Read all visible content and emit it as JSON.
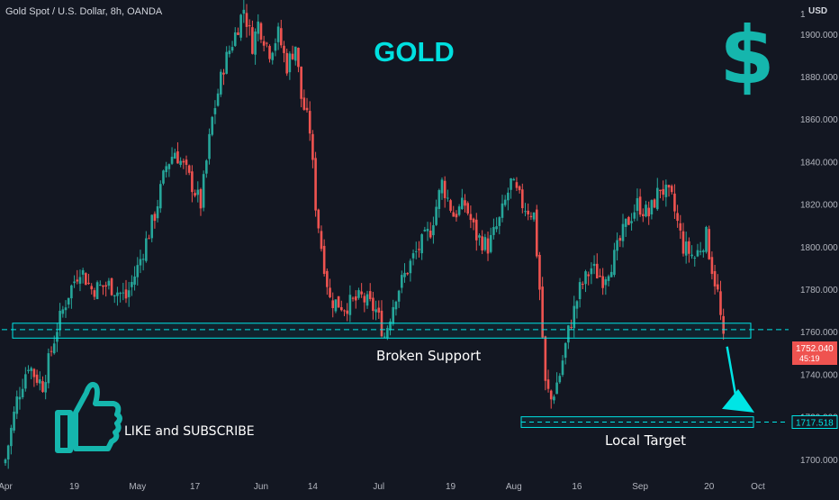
{
  "header": {
    "symbol_title": "Gold Spot / U.S. Dollar, 8h, OANDA",
    "currency": "USD"
  },
  "overlay": {
    "title": "GOLD",
    "dollar_symbol": "$",
    "cta_text": "LIKE and SUBSCRIBE",
    "thumbs_icon": "thumbs-up-icon"
  },
  "colors": {
    "background": "#131722",
    "up_candle": "#26a69a",
    "down_candle": "#ef5350",
    "accent_cyan": "#00e5e5",
    "axis_text": "#b2b5be"
  },
  "chart_data": {
    "type": "candlestick",
    "timeframe": "8h",
    "x_ticks": [
      "Apr",
      "19",
      "May",
      "17",
      "Jun",
      "14",
      "Jul",
      "19",
      "Aug",
      "16",
      "Sep",
      "20",
      "Oct"
    ],
    "y_ticks": [
      1700.0,
      1720.0,
      1740.0,
      1760.0,
      1780.0,
      1800.0,
      1820.0,
      1840.0,
      1860.0,
      1880.0,
      1900.0
    ],
    "y_axis_top_partial": "19",
    "ylim": [
      1694,
      1916
    ],
    "grid": false,
    "price_path": [
      [
        0,
        1700
      ],
      [
        4,
        1728
      ],
      [
        8,
        1745
      ],
      [
        10,
        1740
      ],
      [
        13,
        1735
      ],
      [
        18,
        1762
      ],
      [
        22,
        1778
      ],
      [
        26,
        1790
      ],
      [
        30,
        1780
      ],
      [
        36,
        1782
      ],
      [
        42,
        1776
      ],
      [
        46,
        1790
      ],
      [
        52,
        1815
      ],
      [
        56,
        1838
      ],
      [
        59,
        1845
      ],
      [
        63,
        1835
      ],
      [
        68,
        1820
      ],
      [
        72,
        1860
      ],
      [
        76,
        1885
      ],
      [
        80,
        1900
      ],
      [
        83,
        1912
      ],
      [
        86,
        1895
      ],
      [
        88,
        1905
      ],
      [
        92,
        1892
      ],
      [
        95,
        1900
      ],
      [
        98,
        1885
      ],
      [
        101,
        1895
      ],
      [
        103,
        1870
      ],
      [
        106,
        1855
      ],
      [
        108,
        1820
      ],
      [
        110,
        1800
      ],
      [
        113,
        1775
      ],
      [
        118,
        1772
      ],
      [
        124,
        1776
      ],
      [
        129,
        1770
      ],
      [
        132,
        1758
      ],
      [
        136,
        1778
      ],
      [
        142,
        1795
      ],
      [
        148,
        1808
      ],
      [
        152,
        1830
      ],
      [
        156,
        1815
      ],
      [
        160,
        1820
      ],
      [
        164,
        1805
      ],
      [
        168,
        1800
      ],
      [
        172,
        1812
      ],
      [
        176,
        1830
      ],
      [
        180,
        1820
      ],
      [
        184,
        1815
      ],
      [
        186,
        1780
      ],
      [
        188,
        1735
      ],
      [
        190,
        1728
      ],
      [
        193,
        1740
      ],
      [
        196,
        1760
      ],
      [
        200,
        1780
      ],
      [
        204,
        1790
      ],
      [
        208,
        1785
      ],
      [
        212,
        1795
      ],
      [
        216,
        1810
      ],
      [
        220,
        1820
      ],
      [
        224,
        1815
      ],
      [
        228,
        1828
      ],
      [
        232,
        1822
      ],
      [
        236,
        1800
      ],
      [
        240,
        1795
      ],
      [
        244,
        1805
      ],
      [
        246,
        1790
      ],
      [
        248,
        1778
      ],
      [
        250,
        1755
      ]
    ],
    "total_bars": 251,
    "current_price": "1752.040",
    "countdown": "45:19",
    "target_price": "1717.518",
    "support_zone": [
      1757,
      1764
    ],
    "support_dashed": 1761,
    "target_zone": [
      1715,
      1720
    ],
    "annotations": [
      "Broken Support",
      "Local Target"
    ]
  }
}
